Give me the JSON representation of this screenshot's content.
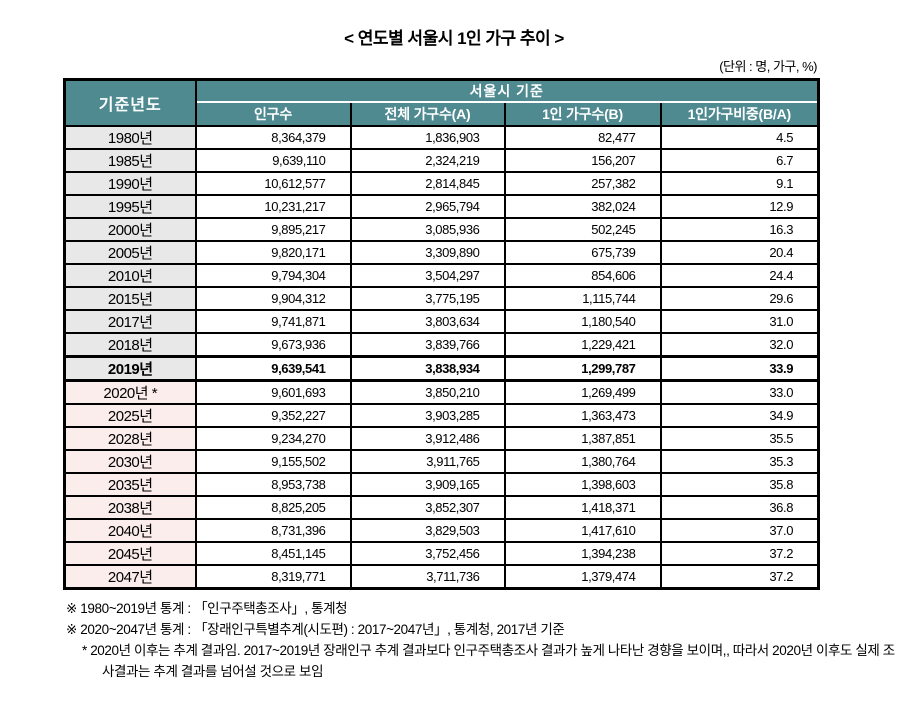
{
  "title": "< 연도별 서울시 1인 가구 추이 >",
  "unit_note": "(단위 : 명, 가구, %)",
  "colors": {
    "header_teal": "#4E8A90",
    "past_year_bg": "#E8E8E8",
    "future_year_bg": "#FBEDEB",
    "border": "#000000",
    "header_text": "#FFFFFF"
  },
  "table": {
    "header": {
      "year_col": "기준년도",
      "group": "서울시 기준",
      "columns": [
        "인구수",
        "전체 가구수(A)",
        "1인 가구수(B)",
        "1인가구비중(B/A)"
      ]
    },
    "rows": [
      {
        "year": "1980년",
        "population": "8,364,379",
        "total_households": "1,836,903",
        "single_households": "82,477",
        "ratio": "4.5",
        "period": "past",
        "bold": false
      },
      {
        "year": "1985년",
        "population": "9,639,110",
        "total_households": "2,324,219",
        "single_households": "156,207",
        "ratio": "6.7",
        "period": "past",
        "bold": false
      },
      {
        "year": "1990년",
        "population": "10,612,577",
        "total_households": "2,814,845",
        "single_households": "257,382",
        "ratio": "9.1",
        "period": "past",
        "bold": false
      },
      {
        "year": "1995년",
        "population": "10,231,217",
        "total_households": "2,965,794",
        "single_households": "382,024",
        "ratio": "12.9",
        "period": "past",
        "bold": false
      },
      {
        "year": "2000년",
        "population": "9,895,217",
        "total_households": "3,085,936",
        "single_households": "502,245",
        "ratio": "16.3",
        "period": "past",
        "bold": false
      },
      {
        "year": "2005년",
        "population": "9,820,171",
        "total_households": "3,309,890",
        "single_households": "675,739",
        "ratio": "20.4",
        "period": "past",
        "bold": false
      },
      {
        "year": "2010년",
        "population": "9,794,304",
        "total_households": "3,504,297",
        "single_households": "854,606",
        "ratio": "24.4",
        "period": "past",
        "bold": false
      },
      {
        "year": "2015년",
        "population": "9,904,312",
        "total_households": "3,775,195",
        "single_households": "1,115,744",
        "ratio": "29.6",
        "period": "past",
        "bold": false
      },
      {
        "year": "2017년",
        "population": "9,741,871",
        "total_households": "3,803,634",
        "single_households": "1,180,540",
        "ratio": "31.0",
        "period": "past",
        "bold": false
      },
      {
        "year": "2018년",
        "population": "9,673,936",
        "total_households": "3,839,766",
        "single_households": "1,229,421",
        "ratio": "32.0",
        "period": "past",
        "bold": false
      },
      {
        "year": "2019년",
        "population": "9,639,541",
        "total_households": "3,838,934",
        "single_households": "1,299,787",
        "ratio": "33.9",
        "period": "past",
        "bold": true
      },
      {
        "year": "2020년 *",
        "population": "9,601,693",
        "total_households": "3,850,210",
        "single_households": "1,269,499",
        "ratio": "33.0",
        "period": "future",
        "bold": false
      },
      {
        "year": "2025년",
        "population": "9,352,227",
        "total_households": "3,903,285",
        "single_households": "1,363,473",
        "ratio": "34.9",
        "period": "future",
        "bold": false
      },
      {
        "year": "2028년",
        "population": "9,234,270",
        "total_households": "3,912,486",
        "single_households": "1,387,851",
        "ratio": "35.5",
        "period": "future",
        "bold": false
      },
      {
        "year": "2030년",
        "population": "9,155,502",
        "total_households": "3,911,765",
        "single_households": "1,380,764",
        "ratio": "35.3",
        "period": "future",
        "bold": false
      },
      {
        "year": "2035년",
        "population": "8,953,738",
        "total_households": "3,909,165",
        "single_households": "1,398,603",
        "ratio": "35.8",
        "period": "future",
        "bold": false
      },
      {
        "year": "2038년",
        "population": "8,825,205",
        "total_households": "3,852,307",
        "single_households": "1,418,371",
        "ratio": "36.8",
        "period": "future",
        "bold": false
      },
      {
        "year": "2040년",
        "population": "8,731,396",
        "total_households": "3,829,503",
        "single_households": "1,417,610",
        "ratio": "37.0",
        "period": "future",
        "bold": false
      },
      {
        "year": "2045년",
        "population": "8,451,145",
        "total_households": "3,752,456",
        "single_households": "1,394,238",
        "ratio": "37.2",
        "period": "future",
        "bold": false
      },
      {
        "year": "2047년",
        "population": "8,319,771",
        "total_households": "3,711,736",
        "single_households": "1,379,474",
        "ratio": "37.2",
        "period": "future",
        "bold": false
      }
    ]
  },
  "footnotes": [
    "※ 1980~2019년 통계 : 「인구주택총조사」, 통계청",
    "※ 2020~2047년 통계 : 「장래인구특별추계(시도편) : 2017~2047년」, 통계청, 2017년 기준",
    "* 2020년 이후는 추계 결과임. 2017~2019년 장래인구 추계 결과보다 인구주택총조사 결과가 높게 나타난 경향을 보이며,, 따라서 2020년 이후도 실제 조사결과는 추계 결과를 넘어설 것으로 보임"
  ]
}
